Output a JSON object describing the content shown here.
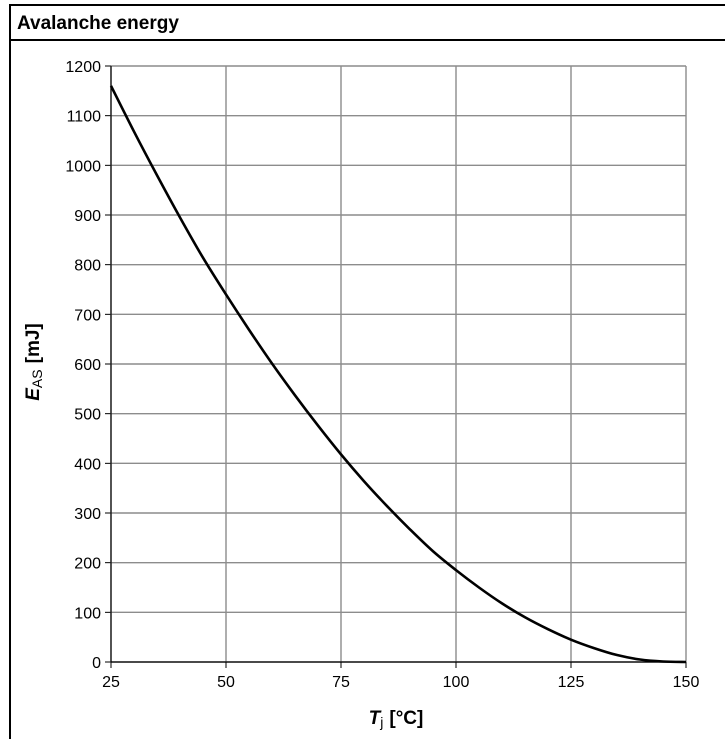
{
  "chart_data": {
    "type": "line",
    "title": "Avalanche energy",
    "xlabel": {
      "symbol": "T",
      "subscript": "j",
      "unit": "[°C]"
    },
    "ylabel": {
      "symbol": "E",
      "subscript": "AS",
      "unit": "[mJ]"
    },
    "xlim": [
      25,
      150
    ],
    "ylim": [
      0,
      1200
    ],
    "xticks": [
      25,
      50,
      75,
      100,
      125,
      150
    ],
    "yticks": [
      0,
      100,
      200,
      300,
      400,
      500,
      600,
      700,
      800,
      900,
      1000,
      1100,
      1200
    ],
    "grid": true,
    "series": [
      {
        "color": "#000000",
        "x": [
          25,
          30,
          35,
          40,
          45,
          50,
          55,
          60,
          65,
          70,
          75,
          80,
          85,
          90,
          95,
          100,
          105,
          110,
          115,
          120,
          125,
          130,
          135,
          140,
          145,
          150
        ],
        "y": [
          1160,
          1068,
          980,
          895,
          814,
          740,
          669,
          601,
          537,
          476,
          418,
          364,
          314,
          267,
          223,
          185,
          150,
          118,
          90,
          66,
          45,
          28,
          14,
          5,
          1,
          0
        ]
      }
    ]
  }
}
